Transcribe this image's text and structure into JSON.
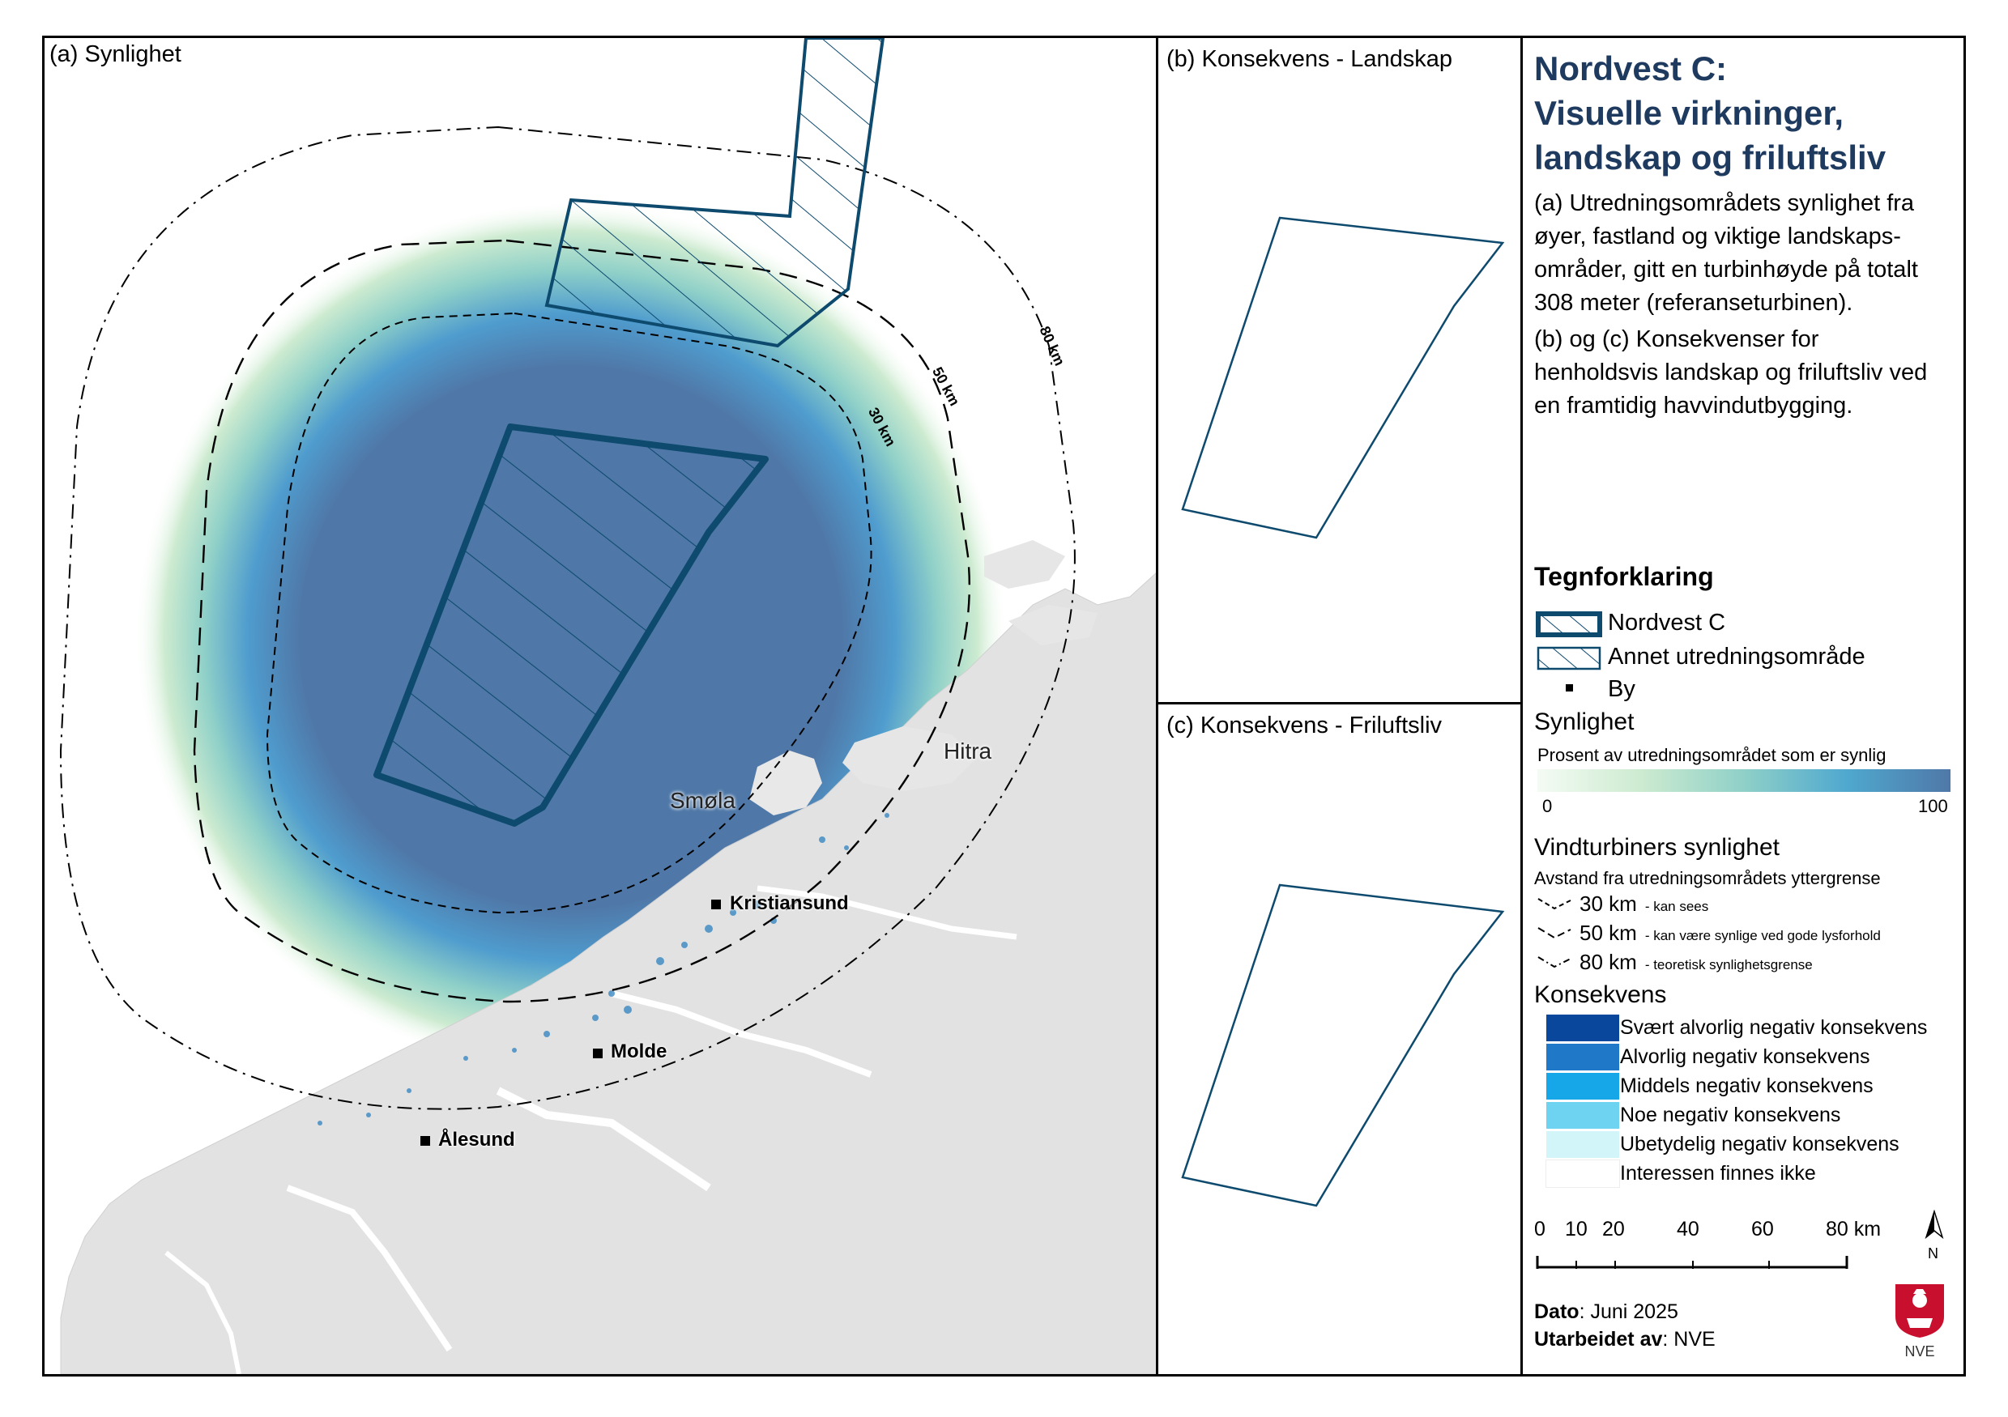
{
  "panels": {
    "a": "(a) Synlighet",
    "b": "(b) Konsekvens - Landskap",
    "c": "(c) Konsekvens - Friluftsliv"
  },
  "title_lines": [
    "Nordvest C:",
    "Visuelle virkninger,",
    "landskap og friluftsliv"
  ],
  "description": {
    "p1": [
      "(a) Utredningsområdets synlighet fra",
      "øyer, fastland og viktige landskaps-",
      "områder, gitt en turbinhøyde på totalt",
      "308 meter (referanseturbinen)."
    ],
    "p2": [
      "(b) og (c) Konsekvenser for",
      "henholdsvis landskap og friluftsliv ved",
      "en framtidig havvindutbygging."
    ]
  },
  "legend": {
    "title": "Tegnforklaring",
    "items": {
      "nordvest_c": "Nordvest C",
      "annet": "Annet utredningsområde",
      "by": "By"
    },
    "synlighet": {
      "title": "Synlighet",
      "subtitle": "Prosent av utredningsområdet som er synlig",
      "min": "0",
      "max": "100",
      "gradient": [
        "#f4fbf4",
        "#cdebd0",
        "#8fd0c8",
        "#4fa8cf",
        "#4f78a8"
      ]
    },
    "vindturbiner": {
      "title": "Vindturbiners synlighet",
      "subtitle": "Avstand fra utredningsområdets yttergrense",
      "rows": [
        {
          "label": "30 km",
          "note": "- kan sees"
        },
        {
          "label": "50 km",
          "note": "- kan være synlige ved gode lysforhold"
        },
        {
          "label": "80 km",
          "note": "- teoretisk synlighetsgrense"
        }
      ]
    },
    "konsekvens": {
      "title": "Konsekvens",
      "rows": [
        {
          "label": "Svært alvorlig negativ konsekvens",
          "color": "#08479b"
        },
        {
          "label": "Alvorlig negativ konsekvens",
          "color": "#1f78c8"
        },
        {
          "label": "Middels negativ konsekvens",
          "color": "#16a7e8"
        },
        {
          "label": "Noe negativ konsekvens",
          "color": "#6dd3f0"
        },
        {
          "label": "Ubetydelig negativ konsekvens",
          "color": "#d2f5fa"
        },
        {
          "label": "Interessen finnes ikke",
          "color": "#ffffff"
        }
      ]
    }
  },
  "scale": {
    "ticks": [
      "0",
      "10",
      "20",
      "40",
      "60",
      "80 km"
    ],
    "north": "N"
  },
  "footer": {
    "dato_label": "Dato",
    "dato_value": ": Juni 2025",
    "utarbeidet_label": "Utarbeidet av",
    "utarbeidet_value": ": NVE",
    "logo_text": "NVE"
  },
  "map": {
    "cities": [
      "Kristiansund",
      "Molde",
      "Ålesund"
    ],
    "places": [
      "Smøla",
      "Hitra"
    ],
    "ring_labels": [
      "30 km",
      "50 km",
      "80 km"
    ],
    "colors": {
      "zone_stroke": "#0d4a6e",
      "land": "#e4e4e4",
      "sea": "#ffffff"
    }
  }
}
